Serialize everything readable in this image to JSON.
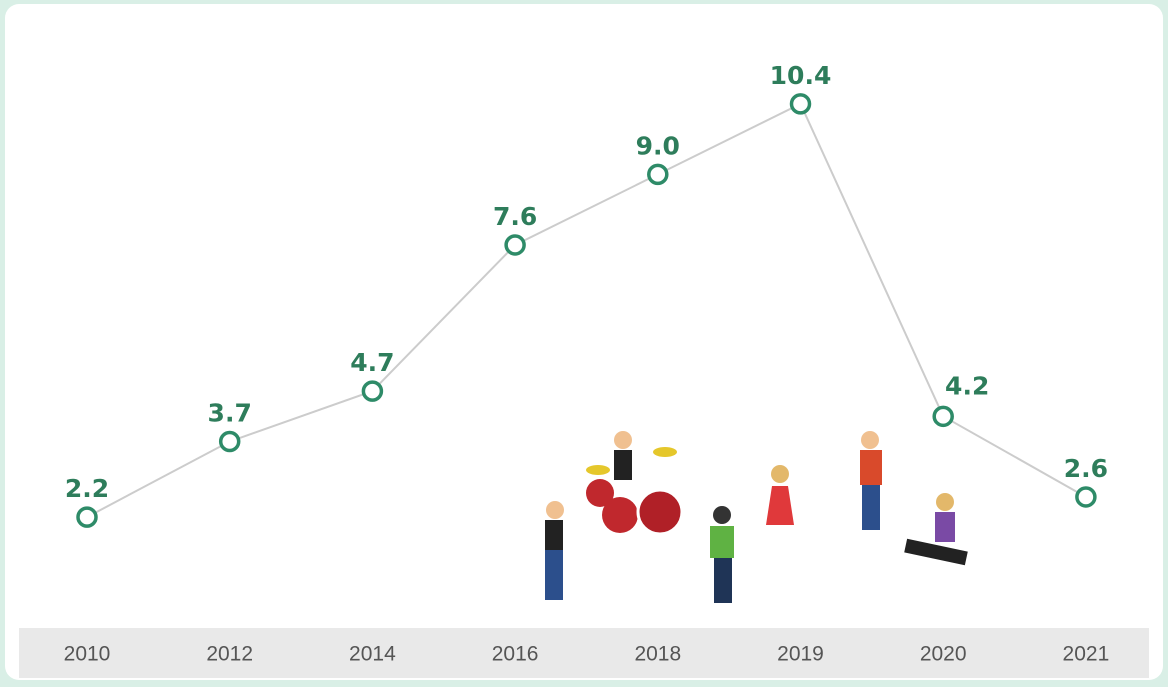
{
  "chart_data": {
    "type": "line",
    "categories": [
      "2010",
      "2012",
      "2014",
      "2016",
      "2018",
      "2019",
      "2020",
      "2021"
    ],
    "values": [
      2.2,
      3.7,
      4.7,
      7.6,
      9.0,
      10.4,
      4.2,
      2.6
    ],
    "value_labels": [
      "2.2",
      "3.7",
      "4.7",
      "7.6",
      "9.0",
      "10.4",
      "4.2",
      "2.6"
    ],
    "color": "#2e8b68",
    "line_color": "#cccccc"
  }
}
